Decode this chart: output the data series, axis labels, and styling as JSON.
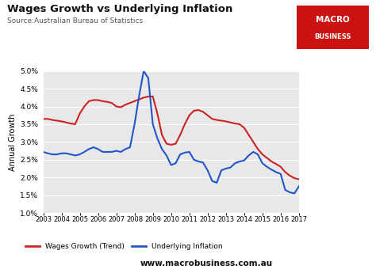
{
  "title": "Wages Growth vs Underlying Inflation",
  "subtitle": "Source:Australian Bureau of Statistics",
  "ylabel": "Annual Growth",
  "background_color": "#e8e8e8",
  "fig_background": "#ffffff",
  "ylim": [
    1.0,
    5.0
  ],
  "yticks": [
    1.0,
    1.5,
    2.0,
    2.5,
    3.0,
    3.5,
    4.0,
    4.5,
    5.0
  ],
  "xticks": [
    2003,
    2004,
    2005,
    2006,
    2007,
    2008,
    2009,
    2010,
    2011,
    2012,
    2013,
    2014,
    2015,
    2016,
    2017
  ],
  "wages_color": "#cc2222",
  "inflation_color": "#2255cc",
  "logo_bg": "#cc1111",
  "wages_x": [
    2003.0,
    2003.25,
    2003.5,
    2003.75,
    2004.0,
    2004.25,
    2004.5,
    2004.75,
    2005.0,
    2005.25,
    2005.5,
    2005.75,
    2006.0,
    2006.25,
    2006.5,
    2006.75,
    2007.0,
    2007.25,
    2007.5,
    2007.75,
    2008.0,
    2008.25,
    2008.5,
    2008.75,
    2009.0,
    2009.25,
    2009.5,
    2009.75,
    2010.0,
    2010.25,
    2010.5,
    2010.75,
    2011.0,
    2011.25,
    2011.5,
    2011.75,
    2012.0,
    2012.25,
    2012.5,
    2012.75,
    2013.0,
    2013.25,
    2013.5,
    2013.75,
    2014.0,
    2014.25,
    2014.5,
    2014.75,
    2015.0,
    2015.25,
    2015.5,
    2015.75,
    2016.0,
    2016.25,
    2016.5,
    2016.75,
    2017.0
  ],
  "wages_y": [
    3.65,
    3.65,
    3.62,
    3.6,
    3.58,
    3.55,
    3.52,
    3.5,
    3.8,
    4.0,
    4.15,
    4.18,
    4.18,
    4.15,
    4.13,
    4.1,
    4.0,
    3.98,
    4.05,
    4.1,
    4.15,
    4.2,
    4.25,
    4.28,
    4.28,
    3.8,
    3.2,
    2.95,
    2.92,
    2.95,
    3.2,
    3.5,
    3.75,
    3.88,
    3.9,
    3.85,
    3.75,
    3.65,
    3.62,
    3.6,
    3.58,
    3.55,
    3.52,
    3.5,
    3.4,
    3.2,
    3.0,
    2.8,
    2.65,
    2.55,
    2.45,
    2.38,
    2.3,
    2.15,
    2.05,
    1.98,
    1.95
  ],
  "inflation_x_full": [
    2003.0,
    2003.25,
    2003.5,
    2003.75,
    2004.0,
    2004.25,
    2004.5,
    2004.75,
    2005.0,
    2005.25,
    2005.5,
    2005.75,
    2006.0,
    2006.25,
    2006.5,
    2006.75,
    2007.0,
    2007.25,
    2007.5,
    2007.75,
    2008.0,
    2008.25,
    2008.5,
    2008.75,
    2009.0,
    2009.25,
    2009.5,
    2009.75,
    2010.0,
    2010.25,
    2010.5,
    2010.75,
    2011.0,
    2011.25,
    2011.5,
    2011.75,
    2012.0,
    2012.25,
    2012.5,
    2012.75,
    2013.0,
    2013.25,
    2013.5,
    2013.75,
    2014.0,
    2014.25,
    2014.5,
    2014.75,
    2015.0,
    2015.25,
    2015.5,
    2015.75,
    2016.0,
    2016.25,
    2016.5,
    2016.75,
    2017.0
  ],
  "inflation_y_full": [
    2.72,
    2.68,
    2.65,
    2.65,
    2.68,
    2.68,
    2.65,
    2.62,
    2.65,
    2.72,
    2.8,
    2.85,
    2.8,
    2.72,
    2.72,
    2.72,
    2.75,
    2.72,
    2.8,
    2.85,
    3.5,
    4.3,
    5.0,
    4.8,
    3.5,
    3.1,
    2.8,
    2.62,
    2.35,
    2.4,
    2.65,
    2.7,
    2.72,
    2.5,
    2.45,
    2.42,
    2.2,
    1.9,
    1.85,
    2.2,
    2.25,
    2.28,
    2.4,
    2.45,
    2.48,
    2.62,
    2.72,
    2.65,
    2.4,
    2.3,
    2.22,
    2.15,
    2.1,
    1.65,
    1.58,
    1.55,
    1.75
  ],
  "website": "www.macrobusiness.com.au",
  "legend_wages": "Wages Growth (Trend)",
  "legend_inflation": "Underlying Inflation"
}
